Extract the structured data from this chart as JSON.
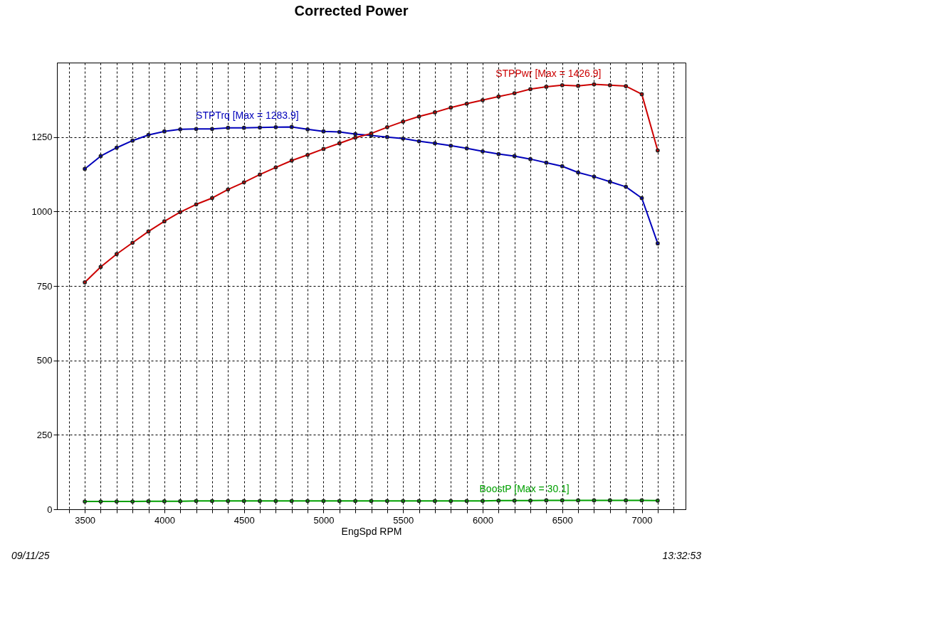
{
  "chart_data": {
    "type": "line",
    "title": "Corrected Power",
    "xlabel": "EngSpd RPM",
    "x": [
      3500,
      3600,
      3700,
      3800,
      3900,
      4000,
      4100,
      4200,
      4300,
      4400,
      4500,
      4600,
      4700,
      4800,
      4900,
      5000,
      5100,
      5200,
      5300,
      5400,
      5500,
      5600,
      5700,
      5800,
      5900,
      6000,
      6100,
      6200,
      6300,
      6400,
      6500,
      6600,
      6700,
      6800,
      6900,
      7000,
      7100
    ],
    "series": [
      {
        "name": "STPTrq [Max = 1283.9]",
        "color": "#0000bb",
        "values": [
          1143,
          1186,
          1214,
          1238,
          1257,
          1269,
          1276,
          1277,
          1277,
          1281,
          1281,
          1282,
          1283,
          1283.9,
          1276,
          1269,
          1267,
          1260,
          1255,
          1250,
          1245,
          1236,
          1229,
          1221,
          1212,
          1202,
          1193,
          1186,
          1176,
          1164,
          1152,
          1131,
          1117,
          1100,
          1083,
          1045,
          893
        ]
      },
      {
        "name": "STPPwr [Max = 1426.9]",
        "color": "#cc0000",
        "values": [
          762,
          814,
          857,
          895,
          933,
          967,
          998,
          1024,
          1045,
          1074,
          1098,
          1124,
          1148,
          1171,
          1190,
          1210,
          1229,
          1248,
          1262,
          1283,
          1302,
          1319,
          1333,
          1349,
          1362,
          1374,
          1386,
          1397,
          1411,
          1419,
          1424,
          1422,
          1426.9,
          1424,
          1421,
          1394,
          1205
        ]
      },
      {
        "name": "BoostP [Max = 30.1]",
        "color": "#00a000",
        "values": [
          26,
          26,
          26,
          26,
          27,
          27,
          27,
          28,
          28,
          28,
          28,
          28,
          28,
          28,
          28,
          28,
          28,
          28,
          28,
          28,
          28,
          28,
          28,
          28,
          28,
          28,
          29,
          29,
          29,
          30,
          30.1,
          30,
          30,
          30,
          30,
          30,
          29
        ]
      }
    ],
    "xlim": [
      3325,
      7275
    ],
    "xticks": [
      {
        "value": 3400,
        "label": null
      },
      3500,
      {
        "value": 3600,
        "label": null
      },
      {
        "value": 3700,
        "label": null
      },
      {
        "value": 3800,
        "label": null
      },
      {
        "value": 3900,
        "label": null
      },
      4000,
      {
        "value": 4100,
        "label": null
      },
      {
        "value": 4200,
        "label": null
      },
      {
        "value": 4300,
        "label": null
      },
      {
        "value": 4400,
        "label": null
      },
      4500,
      {
        "value": 4600,
        "label": null
      },
      {
        "value": 4700,
        "label": null
      },
      {
        "value": 4800,
        "label": null
      },
      {
        "value": 4900,
        "label": null
      },
      5000,
      {
        "value": 5100,
        "label": null
      },
      {
        "value": 5200,
        "label": null
      },
      {
        "value": 5300,
        "label": null
      },
      {
        "value": 5400,
        "label": null
      },
      5500,
      {
        "value": 5600,
        "label": null
      },
      {
        "value": 5700,
        "label": null
      },
      {
        "value": 5800,
        "label": null
      },
      {
        "value": 5900,
        "label": null
      },
      6000,
      {
        "value": 6100,
        "label": null
      },
      {
        "value": 6200,
        "label": null
      },
      {
        "value": 6300,
        "label": null
      },
      {
        "value": 6400,
        "label": null
      },
      6500,
      {
        "value": 6600,
        "label": null
      },
      {
        "value": 6700,
        "label": null
      },
      {
        "value": 6800,
        "label": null
      },
      {
        "value": 6900,
        "label": null
      },
      7000,
      {
        "value": 7100,
        "label": null
      },
      {
        "value": 7200,
        "label": null
      }
    ],
    "ylim": [
      0,
      1500
    ],
    "yticks": [
      0,
      250,
      500,
      750,
      1000,
      1250
    ],
    "grid": true,
    "marker": "circle",
    "line_style": "solid",
    "annotations": [
      "09/11/25",
      "13:32:53"
    ]
  }
}
